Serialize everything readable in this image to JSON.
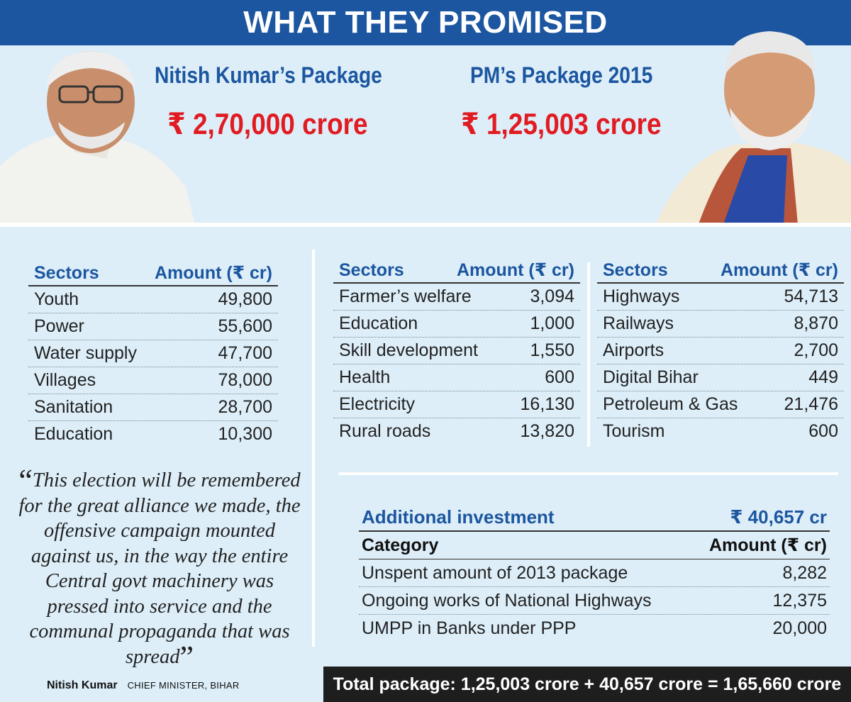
{
  "banner": {
    "title": "WHAT THEY PROMISED"
  },
  "nitish": {
    "package_title": "Nitish Kumar’s Package",
    "package_amount": "₹ 2,70,000 crore",
    "table": {
      "headers": [
        "Sectors",
        "Amount (₹ cr)"
      ],
      "rows": [
        [
          "Youth",
          "49,800"
        ],
        [
          "Power",
          "55,600"
        ],
        [
          "Water supply",
          "47,700"
        ],
        [
          "Villages",
          "78,000"
        ],
        [
          "Sanitation",
          "28,700"
        ],
        [
          "Education",
          "10,300"
        ]
      ]
    },
    "quote": {
      "open": "“",
      "text": "This election will be remembered for the great alliance we made, the offensive campaign mounted against us, in the way the entire Central govt machinery was pressed into service and the communal propaganda that was spread",
      "close": "”",
      "name": "Nitish Kumar",
      "role": "CHIEF MINISTER, BIHAR"
    }
  },
  "pm": {
    "package_title": "PM’s Package 2015",
    "package_amount": "₹ 1,25,003 crore",
    "table1": {
      "headers": [
        "Sectors",
        "Amount (₹ cr)"
      ],
      "rows": [
        [
          "Farmer’s welfare",
          "3,094"
        ],
        [
          "Education",
          "1,000"
        ],
        [
          "Skill development",
          "1,550"
        ],
        [
          "Health",
          "600"
        ],
        [
          "Electricity",
          "16,130"
        ],
        [
          "Rural roads",
          "13,820"
        ]
      ]
    },
    "table2": {
      "headers": [
        "Sectors",
        "Amount (₹ cr)"
      ],
      "rows": [
        [
          "Highways",
          "54,713"
        ],
        [
          "Railways",
          "8,870"
        ],
        [
          "Airports",
          "2,700"
        ],
        [
          "Digital Bihar",
          "449"
        ],
        [
          "Petroleum & Gas",
          "21,476"
        ],
        [
          "Tourism",
          "600"
        ]
      ]
    },
    "additional": {
      "title": "Additional investment",
      "amount": "₹ 40,657 cr",
      "headers": [
        "Category",
        "Amount (₹ cr)"
      ],
      "rows": [
        [
          "Unspent amount of 2013 package",
          "8,282"
        ],
        [
          "Ongoing works of National Highways",
          "12,375"
        ],
        [
          "UMPP in Banks under PPP",
          "20,000"
        ]
      ]
    },
    "total": "Total package: 1,25,003 crore + 40,657 crore = 1,65,660 crore"
  },
  "colors": {
    "banner": "#1c56a0",
    "heading": "#1c56a0",
    "amount": "#e11b22",
    "background": "#ddeef8",
    "total_bar": "#1e1e1e"
  }
}
